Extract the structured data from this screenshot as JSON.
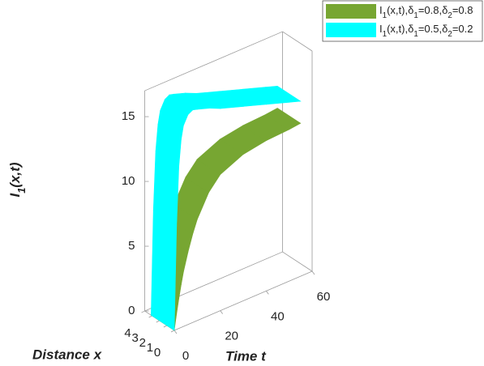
{
  "chart_data": {
    "type": "surface3d",
    "xlabel": "Time t",
    "ylabel": "Distance x",
    "zlabel": "I1(x,t)",
    "xlim": [
      0,
      60
    ],
    "xticks": [
      0,
      20,
      40,
      60
    ],
    "ylim": [
      0,
      4
    ],
    "yticks": [
      0,
      1,
      2,
      3,
      4
    ],
    "zlim": [
      0,
      17
    ],
    "zticks": [
      0,
      5,
      10,
      15
    ],
    "surface_y": [
      0,
      3.14
    ],
    "x": [
      0,
      1,
      2,
      3,
      4,
      6,
      8,
      10,
      15,
      20,
      30,
      40,
      50,
      55
    ],
    "series": [
      {
        "name": "I1(x,t),δ1=0.8,δ2=0.8",
        "color": "#77a632",
        "values": [
          0,
          1.2,
          2.3,
          3.3,
          4.2,
          5.6,
          6.8,
          7.8,
          9.5,
          10.5,
          11.3,
          11.6,
          11.7,
          11.8
        ]
      },
      {
        "name": "I1(x,t),δ1=0.5,δ2=0.2",
        "color": "#00ffff",
        "values": [
          0,
          8,
          12.5,
          14.5,
          15.5,
          16.2,
          16.4,
          16.3,
          16,
          15.6,
          15,
          14.4,
          13.8,
          13.5
        ]
      }
    ]
  }
}
